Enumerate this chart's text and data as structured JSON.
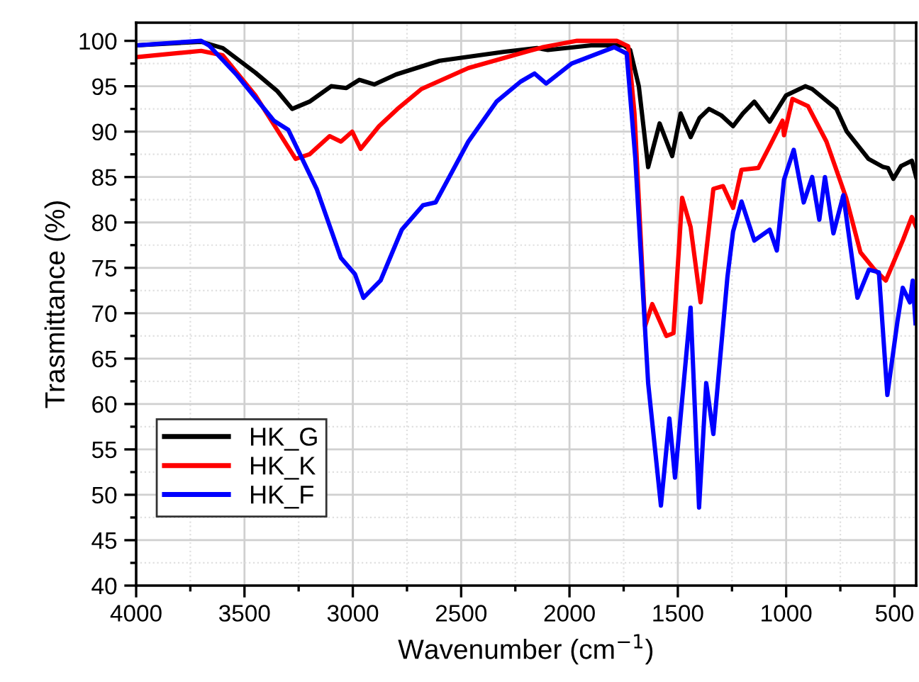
{
  "chart_data": {
    "type": "line",
    "xlabel": "Wavenumber (cm$^{−1}$)",
    "ylabel": "Trasmittance (%)",
    "xlim": [
      4000,
      400
    ],
    "xticks": [
      4000,
      3500,
      3000,
      2500,
      2000,
      1500,
      1000,
      500
    ],
    "ylim": [
      40,
      102
    ],
    "yticks": [
      40,
      45,
      50,
      55,
      60,
      65,
      70,
      75,
      80,
      85,
      90,
      95,
      100
    ],
    "grid": true,
    "legend": "bottom left",
    "line_style": "solid",
    "marker": "none",
    "series": [
      {
        "name": "HK_G",
        "color": "#000000",
        "x": [
          4000,
          3700,
          3600,
          3450,
          3350,
          3280,
          3200,
          3100,
          3030,
          2970,
          2900,
          2800,
          2600,
          2300,
          2150,
          2100,
          1900,
          1750,
          1720,
          1680,
          1637,
          1584,
          1526,
          1487,
          1441,
          1400,
          1356,
          1300,
          1245,
          1200,
          1147,
          1076,
          1000,
          912,
          880,
          768,
          720,
          620,
          552,
          530,
          505,
          470,
          420,
          400
        ],
        "values": [
          99.5,
          99.9,
          99.2,
          96.5,
          94.5,
          92.5,
          93.3,
          95,
          94.8,
          95.7,
          95.2,
          96.3,
          97.8,
          98.8,
          99.2,
          99,
          99.5,
          99.5,
          99,
          95,
          86.1,
          90.9,
          87.3,
          92,
          89.4,
          91.5,
          92.5,
          91.8,
          90.6,
          92,
          93.3,
          91.1,
          94,
          95,
          94.7,
          92.5,
          90,
          87,
          86.1,
          86,
          84.8,
          86.2,
          86.8,
          85
        ]
      },
      {
        "name": "HK_K",
        "color": "#ff0000",
        "x": [
          4000,
          3700,
          3600,
          3450,
          3264,
          3200,
          3107,
          3055,
          3003,
          2964,
          2879,
          2794,
          2683,
          2467,
          2186,
          2122,
          1965,
          1782,
          1729,
          1700,
          1651,
          1618,
          1553,
          1520,
          1480,
          1441,
          1395,
          1336,
          1291,
          1245,
          1206,
          1128,
          1076,
          1017,
          1010,
          971,
          899,
          814,
          723,
          657,
          592,
          540,
          462,
          420,
          400
        ],
        "values": [
          98.2,
          98.9,
          98.4,
          94,
          87.0,
          87.5,
          89.5,
          88.9,
          90,
          88.1,
          90.6,
          92.5,
          94.7,
          97,
          98.9,
          99.3,
          100,
          100,
          99.4,
          92,
          68.6,
          71,
          67.5,
          67.8,
          82.7,
          79.5,
          71.2,
          83.7,
          84,
          81.6,
          85.8,
          86,
          88.4,
          91.2,
          89.6,
          93.6,
          92.8,
          88.9,
          82.7,
          76.7,
          74.8,
          73.6,
          78,
          80.6,
          79.5
        ]
      },
      {
        "name": "HK_F",
        "color": "#0000ff",
        "x": [
          4000,
          3700,
          3664,
          3534,
          3364,
          3298,
          3167,
          3055,
          2990,
          2951,
          2872,
          2774,
          2676,
          2618,
          2467,
          2337,
          2226,
          2161,
          2108,
          1990,
          1794,
          1736,
          1696,
          1637,
          1578,
          1539,
          1513,
          1441,
          1402,
          1369,
          1336,
          1271,
          1245,
          1206,
          1147,
          1076,
          1043,
          1010,
          965,
          919,
          880,
          847,
          821,
          782,
          736,
          671,
          618,
          572,
          533,
          487,
          462,
          429,
          416,
          403
        ],
        "values": [
          99.5,
          100,
          99.5,
          96.2,
          91.2,
          90.2,
          83.7,
          76.1,
          74.3,
          71.7,
          73.6,
          79.2,
          81.9,
          82.2,
          88.9,
          93.3,
          95.5,
          96.4,
          95.3,
          97.5,
          99.3,
          98.6,
          87,
          62.3,
          48.8,
          58.4,
          51.9,
          70.6,
          48.6,
          62.3,
          56.7,
          74,
          79,
          82.3,
          78,
          79.2,
          76.9,
          84.7,
          88,
          82.2,
          85,
          80.3,
          85,
          78.8,
          83,
          71.7,
          74.8,
          74.5,
          61,
          69,
          72.8,
          71.2,
          73.6,
          68.9
        ]
      }
    ]
  }
}
